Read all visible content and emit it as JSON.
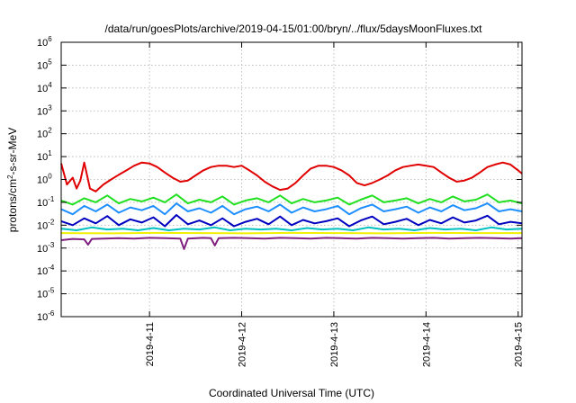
{
  "chart_data": {
    "type": "line",
    "title": "/data/run/goesPlots/archive/2019-04-15/01:00/bryn/../flux/5daysMoonFluxes.txt",
    "xlabel": "Coordinated Universal Time (UTC)",
    "ylabel": "protons/cm2-s-sr-MeV",
    "ylabel_parts": {
      "pre": "protons/cm",
      "sup": "2",
      "post": "-s-sr-MeV"
    },
    "x_scale": "time (days)",
    "y_scale": "log",
    "xlim": [
      "2019-04-10 01:00",
      "2019-04-15 01:00"
    ],
    "ylim": [
      1e-06,
      1000000.0
    ],
    "grid": true,
    "legend": "none",
    "x_ticks": [
      {
        "value": "2019-04-11",
        "label": "2019-4-11"
      },
      {
        "value": "2019-04-12",
        "label": "2019-4-12"
      },
      {
        "value": "2019-04-13",
        "label": "2019-4-13"
      },
      {
        "value": "2019-04-14",
        "label": "2019-4-14"
      },
      {
        "value": "2019-04-15",
        "label": "2019-4-15"
      }
    ],
    "y_ticks": [
      {
        "value": 1e-06,
        "base": "10",
        "exp": "-6"
      },
      {
        "value": 1e-05,
        "base": "10",
        "exp": "-5"
      },
      {
        "value": 0.0001,
        "base": "10",
        "exp": "-4"
      },
      {
        "value": 0.001,
        "base": "10",
        "exp": "-3"
      },
      {
        "value": 0.01,
        "base": "10",
        "exp": "-2"
      },
      {
        "value": 0.1,
        "base": "10",
        "exp": "-1"
      },
      {
        "value": 1,
        "base": "10",
        "exp": "0"
      },
      {
        "value": 10,
        "base": "10",
        "exp": "1"
      },
      {
        "value": 100,
        "base": "10",
        "exp": "2"
      },
      {
        "value": 1000,
        "base": "10",
        "exp": "3"
      },
      {
        "value": 10000,
        "base": "10",
        "exp": "4"
      },
      {
        "value": 100000,
        "base": "10",
        "exp": "5"
      },
      {
        "value": 1000000,
        "base": "10",
        "exp": "6"
      }
    ],
    "series": [
      {
        "color": "#e00000",
        "x": [
          "2019-04-10 01:00",
          "2019-04-10 02:30",
          "2019-04-10 04:00",
          "2019-04-10 05:00",
          "2019-04-10 06:00",
          "2019-04-10 07:00",
          "2019-04-10 08:30",
          "2019-04-10 10:00",
          "2019-04-10 12:00",
          "2019-04-10 14:00",
          "2019-04-10 16:00",
          "2019-04-10 18:00",
          "2019-04-10 20:00",
          "2019-04-10 22:00",
          "2019-04-11 00:00",
          "2019-04-11 02:00",
          "2019-04-11 04:00",
          "2019-04-11 06:00",
          "2019-04-11 08:00",
          "2019-04-11 10:00",
          "2019-04-11 12:00",
          "2019-04-11 14:00",
          "2019-04-11 16:00",
          "2019-04-11 18:00",
          "2019-04-11 20:00",
          "2019-04-11 22:00",
          "2019-04-12 00:00",
          "2019-04-12 02:00",
          "2019-04-12 04:00",
          "2019-04-12 06:00",
          "2019-04-12 08:00",
          "2019-04-12 10:00",
          "2019-04-12 12:00",
          "2019-04-12 14:00",
          "2019-04-12 16:00",
          "2019-04-12 18:00",
          "2019-04-12 20:00",
          "2019-04-12 22:00",
          "2019-04-13 00:00",
          "2019-04-13 02:00",
          "2019-04-13 04:00",
          "2019-04-13 06:00",
          "2019-04-13 08:00",
          "2019-04-13 10:00",
          "2019-04-13 12:00",
          "2019-04-13 14:00",
          "2019-04-13 16:00",
          "2019-04-13 18:00",
          "2019-04-13 20:00",
          "2019-04-13 22:00",
          "2019-04-14 00:00",
          "2019-04-14 02:00",
          "2019-04-14 04:00",
          "2019-04-14 06:00",
          "2019-04-14 08:00",
          "2019-04-14 10:00",
          "2019-04-14 12:00",
          "2019-04-14 14:00",
          "2019-04-14 16:00",
          "2019-04-14 18:00",
          "2019-04-14 20:00",
          "2019-04-14 22:00",
          "2019-04-15 00:00",
          "2019-04-15 01:00"
        ],
        "y": [
          5,
          0.6,
          1.2,
          0.4,
          0.9,
          5.5,
          0.4,
          0.3,
          0.6,
          1,
          1.6,
          2.5,
          4,
          5.5,
          5,
          3.5,
          2,
          1.2,
          0.8,
          0.9,
          1.5,
          2.5,
          3.5,
          4,
          4,
          3.5,
          4,
          2.5,
          1.5,
          0.8,
          0.5,
          0.35,
          0.4,
          0.7,
          1.5,
          3,
          4,
          4,
          3.5,
          2.5,
          1.5,
          0.7,
          0.55,
          0.7,
          1,
          1.5,
          2.5,
          3.5,
          4,
          4.5,
          4,
          3.5,
          2,
          1.2,
          0.8,
          0.9,
          1.2,
          2,
          3.5,
          4.5,
          5.5,
          4.5,
          2.5,
          1.8
        ]
      },
      {
        "color": "#20e020",
        "x": [
          "2019-04-10 01:00",
          "2019-04-10 04:00",
          "2019-04-10 07:00",
          "2019-04-10 10:00",
          "2019-04-10 13:00",
          "2019-04-10 16:00",
          "2019-04-10 19:00",
          "2019-04-10 22:00",
          "2019-04-11 01:00",
          "2019-04-11 04:00",
          "2019-04-11 07:00",
          "2019-04-11 10:00",
          "2019-04-11 13:00",
          "2019-04-11 16:00",
          "2019-04-11 19:00",
          "2019-04-11 22:00",
          "2019-04-12 01:00",
          "2019-04-12 04:00",
          "2019-04-12 07:00",
          "2019-04-12 10:00",
          "2019-04-12 13:00",
          "2019-04-12 16:00",
          "2019-04-12 19:00",
          "2019-04-12 22:00",
          "2019-04-13 01:00",
          "2019-04-13 04:00",
          "2019-04-13 07:00",
          "2019-04-13 10:00",
          "2019-04-13 13:00",
          "2019-04-13 16:00",
          "2019-04-13 19:00",
          "2019-04-13 22:00",
          "2019-04-14 01:00",
          "2019-04-14 04:00",
          "2019-04-14 07:00",
          "2019-04-14 10:00",
          "2019-04-14 13:00",
          "2019-04-14 16:00",
          "2019-04-14 19:00",
          "2019-04-14 22:00",
          "2019-04-15 01:00"
        ],
        "y": [
          0.12,
          0.08,
          0.15,
          0.1,
          0.2,
          0.09,
          0.14,
          0.11,
          0.16,
          0.1,
          0.22,
          0.09,
          0.13,
          0.1,
          0.18,
          0.08,
          0.12,
          0.15,
          0.1,
          0.2,
          0.09,
          0.14,
          0.1,
          0.12,
          0.16,
          0.08,
          0.13,
          0.2,
          0.1,
          0.12,
          0.15,
          0.09,
          0.14,
          0.1,
          0.18,
          0.11,
          0.13,
          0.22,
          0.1,
          0.12,
          0.09
        ]
      },
      {
        "color": "#1f8fff",
        "x": [
          "2019-04-10 01:00",
          "2019-04-10 04:00",
          "2019-04-10 07:00",
          "2019-04-10 10:00",
          "2019-04-10 13:00",
          "2019-04-10 16:00",
          "2019-04-10 19:00",
          "2019-04-10 22:00",
          "2019-04-11 01:00",
          "2019-04-11 04:00",
          "2019-04-11 07:00",
          "2019-04-11 10:00",
          "2019-04-11 13:00",
          "2019-04-11 16:00",
          "2019-04-11 19:00",
          "2019-04-11 22:00",
          "2019-04-12 01:00",
          "2019-04-12 04:00",
          "2019-04-12 07:00",
          "2019-04-12 10:00",
          "2019-04-12 13:00",
          "2019-04-12 16:00",
          "2019-04-12 19:00",
          "2019-04-12 22:00",
          "2019-04-13 01:00",
          "2019-04-13 04:00",
          "2019-04-13 07:00",
          "2019-04-13 10:00",
          "2019-04-13 13:00",
          "2019-04-13 16:00",
          "2019-04-13 19:00",
          "2019-04-13 22:00",
          "2019-04-14 01:00",
          "2019-04-14 04:00",
          "2019-04-14 07:00",
          "2019-04-14 10:00",
          "2019-04-14 13:00",
          "2019-04-14 16:00",
          "2019-04-14 19:00",
          "2019-04-14 22:00",
          "2019-04-15 01:00"
        ],
        "y": [
          0.05,
          0.03,
          0.07,
          0.04,
          0.08,
          0.035,
          0.06,
          0.045,
          0.07,
          0.03,
          0.09,
          0.04,
          0.055,
          0.035,
          0.07,
          0.03,
          0.05,
          0.065,
          0.04,
          0.08,
          0.035,
          0.06,
          0.04,
          0.05,
          0.07,
          0.03,
          0.055,
          0.08,
          0.04,
          0.05,
          0.065,
          0.035,
          0.06,
          0.04,
          0.075,
          0.045,
          0.055,
          0.09,
          0.04,
          0.05,
          0.04
        ]
      },
      {
        "color": "#0000c0",
        "x": [
          "2019-04-10 01:00",
          "2019-04-10 04:00",
          "2019-04-10 07:00",
          "2019-04-10 10:00",
          "2019-04-10 13:00",
          "2019-04-10 16:00",
          "2019-04-10 19:00",
          "2019-04-10 22:00",
          "2019-04-11 01:00",
          "2019-04-11 04:00",
          "2019-04-11 07:00",
          "2019-04-11 10:00",
          "2019-04-11 13:00",
          "2019-04-11 16:00",
          "2019-04-11 19:00",
          "2019-04-11 22:00",
          "2019-04-12 01:00",
          "2019-04-12 04:00",
          "2019-04-12 07:00",
          "2019-04-12 10:00",
          "2019-04-12 13:00",
          "2019-04-12 16:00",
          "2019-04-12 19:00",
          "2019-04-12 22:00",
          "2019-04-13 01:00",
          "2019-04-13 04:00",
          "2019-04-13 07:00",
          "2019-04-13 10:00",
          "2019-04-13 13:00",
          "2019-04-13 16:00",
          "2019-04-13 19:00",
          "2019-04-13 22:00",
          "2019-04-14 01:00",
          "2019-04-14 04:00",
          "2019-04-14 07:00",
          "2019-04-14 10:00",
          "2019-04-14 13:00",
          "2019-04-14 16:00",
          "2019-04-14 19:00",
          "2019-04-14 22:00",
          "2019-04-15 01:00"
        ],
        "y": [
          0.015,
          0.01,
          0.02,
          0.012,
          0.025,
          0.01,
          0.018,
          0.013,
          0.022,
          0.009,
          0.028,
          0.011,
          0.016,
          0.01,
          0.02,
          0.009,
          0.014,
          0.019,
          0.011,
          0.024,
          0.01,
          0.017,
          0.012,
          0.015,
          0.02,
          0.009,
          0.016,
          0.024,
          0.011,
          0.014,
          0.019,
          0.01,
          0.017,
          0.012,
          0.022,
          0.013,
          0.016,
          0.026,
          0.011,
          0.014,
          0.012
        ]
      },
      {
        "color": "#00c0c0",
        "x": [
          "2019-04-10 01:00",
          "2019-04-10 05:00",
          "2019-04-10 09:00",
          "2019-04-10 13:00",
          "2019-04-10 17:00",
          "2019-04-10 21:00",
          "2019-04-11 01:00",
          "2019-04-11 05:00",
          "2019-04-11 09:00",
          "2019-04-11 13:00",
          "2019-04-11 17:00",
          "2019-04-11 21:00",
          "2019-04-12 01:00",
          "2019-04-12 05:00",
          "2019-04-12 09:00",
          "2019-04-12 13:00",
          "2019-04-12 17:00",
          "2019-04-12 21:00",
          "2019-04-13 01:00",
          "2019-04-13 05:00",
          "2019-04-13 09:00",
          "2019-04-13 13:00",
          "2019-04-13 17:00",
          "2019-04-13 21:00",
          "2019-04-14 01:00",
          "2019-04-14 05:00",
          "2019-04-14 09:00",
          "2019-04-14 13:00",
          "2019-04-14 17:00",
          "2019-04-14 21:00",
          "2019-04-15 01:00"
        ],
        "y": [
          0.007,
          0.006,
          0.008,
          0.0065,
          0.007,
          0.006,
          0.0075,
          0.006,
          0.007,
          0.0065,
          0.008,
          0.006,
          0.007,
          0.0065,
          0.007,
          0.006,
          0.0075,
          0.0065,
          0.007,
          0.006,
          0.008,
          0.0065,
          0.007,
          0.006,
          0.0075,
          0.0065,
          0.007,
          0.006,
          0.008,
          0.0065,
          0.007
        ]
      },
      {
        "color": "#f0f000",
        "x": [
          "2019-04-10 01:00",
          "2019-04-10 13:00",
          "2019-04-11 01:00",
          "2019-04-11 13:00",
          "2019-04-12 01:00",
          "2019-04-12 13:00",
          "2019-04-13 01:00",
          "2019-04-13 13:00",
          "2019-04-14 01:00",
          "2019-04-14 13:00",
          "2019-04-15 01:00"
        ],
        "y": [
          0.0045,
          0.0044,
          0.0046,
          0.0045,
          0.0044,
          0.0046,
          0.0045,
          0.0044,
          0.0046,
          0.0045,
          0.0045
        ]
      },
      {
        "color": "#802080",
        "x": [
          "2019-04-10 01:00",
          "2019-04-10 04:00",
          "2019-04-10 07:00",
          "2019-04-10 08:00",
          "2019-04-10 09:00",
          "2019-04-10 12:00",
          "2019-04-10 16:00",
          "2019-04-10 20:00",
          "2019-04-11 00:00",
          "2019-04-11 04:00",
          "2019-04-11 08:00",
          "2019-04-11 09:00",
          "2019-04-11 10:00",
          "2019-04-11 14:00",
          "2019-04-11 16:00",
          "2019-04-11 17:00",
          "2019-04-11 18:00",
          "2019-04-11 22:00",
          "2019-04-12 02:00",
          "2019-04-12 06:00",
          "2019-04-12 10:00",
          "2019-04-12 14:00",
          "2019-04-12 18:00",
          "2019-04-12 22:00",
          "2019-04-13 02:00",
          "2019-04-13 06:00",
          "2019-04-13 10:00",
          "2019-04-13 14:00",
          "2019-04-13 18:00",
          "2019-04-13 22:00",
          "2019-04-14 02:00",
          "2019-04-14 06:00",
          "2019-04-14 10:00",
          "2019-04-14 14:00",
          "2019-04-14 18:00",
          "2019-04-14 22:00",
          "2019-04-15 01:00"
        ],
        "y": [
          0.0022,
          0.0025,
          0.0024,
          0.0014,
          0.0025,
          0.0026,
          0.0027,
          0.0026,
          0.0028,
          0.0027,
          0.0026,
          0.0009,
          0.0026,
          0.0028,
          0.0027,
          0.0013,
          0.0027,
          0.0028,
          0.0027,
          0.0026,
          0.0028,
          0.0027,
          0.0026,
          0.0028,
          0.0027,
          0.0026,
          0.0028,
          0.0027,
          0.0026,
          0.0027,
          0.0028,
          0.0026,
          0.0027,
          0.0028,
          0.0027,
          0.0026,
          0.0027
        ]
      }
    ]
  }
}
